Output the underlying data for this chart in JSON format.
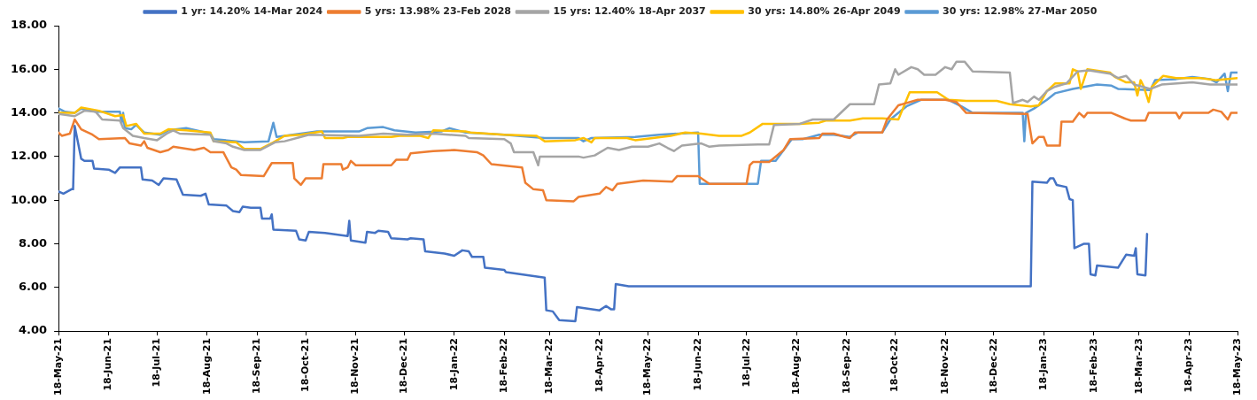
{
  "chart_data": {
    "type": "line",
    "legend": "top",
    "marker": "none",
    "line_style": "solid",
    "grid": false,
    "ylim": [
      4,
      18
    ],
    "yticks": [
      {
        "value": 4,
        "label": "4.00"
      },
      {
        "value": 6,
        "label": "6.00"
      },
      {
        "value": 8,
        "label": "8.00"
      },
      {
        "value": 10,
        "label": "10.00"
      },
      {
        "value": 12,
        "label": "12.00"
      },
      {
        "value": 14,
        "label": "14.00"
      },
      {
        "value": 16,
        "label": "16.00"
      },
      {
        "value": 18,
        "label": "18.00"
      }
    ],
    "xlim": [
      "2021-05-18",
      "2023-05-18"
    ],
    "xticks": [
      {
        "value": "2021-05-18",
        "label": "18-May-21"
      },
      {
        "value": "2021-06-18",
        "label": "18-Jun-21"
      },
      {
        "value": "2021-07-18",
        "label": "18-Jul-21"
      },
      {
        "value": "2021-08-18",
        "label": "18-Aug-21"
      },
      {
        "value": "2021-09-18",
        "label": "18-Sep-21"
      },
      {
        "value": "2021-10-18",
        "label": "18-Oct-21"
      },
      {
        "value": "2021-11-18",
        "label": "18-Nov-21"
      },
      {
        "value": "2021-12-18",
        "label": "18-Dec-21"
      },
      {
        "value": "2022-01-18",
        "label": "18-Jan-22"
      },
      {
        "value": "2022-02-18",
        "label": "18-Feb-22"
      },
      {
        "value": "2022-03-18",
        "label": "18-Mar-22"
      },
      {
        "value": "2022-04-18",
        "label": "18-Apr-22"
      },
      {
        "value": "2022-05-18",
        "label": "18-May-22"
      },
      {
        "value": "2022-06-18",
        "label": "18-Jun-22"
      },
      {
        "value": "2022-07-18",
        "label": "18-Jul-22"
      },
      {
        "value": "2022-08-18",
        "label": "18-Aug-22"
      },
      {
        "value": "2022-09-18",
        "label": "18-Sep-22"
      },
      {
        "value": "2022-10-18",
        "label": "18-Oct-22"
      },
      {
        "value": "2022-11-18",
        "label": "18-Nov-22"
      },
      {
        "value": "2022-12-18",
        "label": "18-Dec-22"
      },
      {
        "value": "2023-01-18",
        "label": "18-Jan-23"
      },
      {
        "value": "2023-02-18",
        "label": "18-Feb-23"
      },
      {
        "value": "2023-03-18",
        "label": "18-Mar-23"
      },
      {
        "value": "2023-04-18",
        "label": "18-Apr-23"
      },
      {
        "value": "2023-05-18",
        "label": "18-May-23"
      }
    ],
    "series": [
      {
        "name": "1 yr: 14.20% 14-Mar 2024",
        "color": "#4472c4",
        "x": [
          "2021-05-18",
          "2021-05-21",
          "2021-05-26",
          "2021-05-27",
          "2021-05-28",
          "2021-06-01",
          "2021-06-03",
          "2021-06-08",
          "2021-06-09",
          "2021-06-18",
          "2021-06-22",
          "2021-06-25",
          "2021-07-08",
          "2021-07-09",
          "2021-07-15",
          "2021-07-19",
          "2021-07-22",
          "2021-07-30",
          "2021-08-03",
          "2021-08-14",
          "2021-08-17",
          "2021-08-19",
          "2021-08-30",
          "2021-09-03",
          "2021-09-07",
          "2021-09-09",
          "2021-09-14",
          "2021-09-20",
          "2021-09-21",
          "2021-09-26",
          "2021-09-27",
          "2021-09-28",
          "2021-10-12",
          "2021-10-14",
          "2021-10-18",
          "2021-10-20",
          "2021-10-30",
          "2021-11-08",
          "2021-11-13",
          "2021-11-14",
          "2021-11-15",
          "2021-11-24",
          "2021-11-25",
          "2021-11-30",
          "2021-12-02",
          "2021-12-08",
          "2021-12-10",
          "2021-12-20",
          "2021-12-22",
          "2021-12-30",
          "2021-12-31",
          "2022-01-12",
          "2022-01-18",
          "2022-01-23",
          "2022-01-27",
          "2022-01-29",
          "2022-02-05",
          "2022-02-06",
          "2022-02-18",
          "2022-02-19",
          "2022-03-15",
          "2022-03-16",
          "2022-03-20",
          "2022-03-24",
          "2022-04-03",
          "2022-04-04",
          "2022-04-18",
          "2022-04-22",
          "2022-04-25",
          "2022-04-27",
          "2022-04-28",
          "2022-05-02",
          "2022-05-06",
          "2023-01-10",
          "2023-01-11",
          "2023-01-20",
          "2023-01-22",
          "2023-01-24",
          "2023-01-26",
          "2023-02-01",
          "2023-02-03",
          "2023-02-05",
          "2023-02-06",
          "2023-02-12",
          "2023-02-15",
          "2023-02-16",
          "2023-02-19",
          "2023-02-20",
          "2023-03-05",
          "2023-03-10",
          "2023-03-15",
          "2023-03-16",
          "2023-03-17",
          "2023-03-22",
          "2023-03-23"
        ],
        "values": [
          10.4,
          10.3,
          10.5,
          10.5,
          13.4,
          11.9,
          11.8,
          11.8,
          11.45,
          11.4,
          11.25,
          11.5,
          11.5,
          10.95,
          10.9,
          10.7,
          11.0,
          10.95,
          10.25,
          10.2,
          10.3,
          9.8,
          9.75,
          9.5,
          9.45,
          9.7,
          9.65,
          9.65,
          9.15,
          9.15,
          9.35,
          8.65,
          8.6,
          8.2,
          8.15,
          8.55,
          8.5,
          8.4,
          8.35,
          9.05,
          8.15,
          8.05,
          8.55,
          8.5,
          8.6,
          8.55,
          8.25,
          8.2,
          8.25,
          8.2,
          7.65,
          7.55,
          7.45,
          7.7,
          7.65,
          7.4,
          7.4,
          6.9,
          6.8,
          6.7,
          6.45,
          4.95,
          4.9,
          4.5,
          4.45,
          5.1,
          4.95,
          5.15,
          5.0,
          5.0,
          6.15,
          6.1,
          6.05,
          6.05,
          10.85,
          10.8,
          11.0,
          11.0,
          10.7,
          10.6,
          10.05,
          10.0,
          7.8,
          8.0,
          8.0,
          6.6,
          6.55,
          7.0,
          6.9,
          7.5,
          7.45,
          7.8,
          6.6,
          6.55,
          8.45
        ]
      },
      {
        "name": "5 yrs: 13.98% 23-Feb 2028",
        "color": "#ed7d31",
        "x": [
          "2021-05-18",
          "2021-05-20",
          "2021-05-25",
          "2021-05-28",
          "2021-06-01",
          "2021-06-08",
          "2021-06-12",
          "2021-06-28",
          "2021-07-01",
          "2021-07-08",
          "2021-07-10",
          "2021-07-12",
          "2021-07-20",
          "2021-07-25",
          "2021-07-28",
          "2021-08-10",
          "2021-08-16",
          "2021-08-20",
          "2021-08-28",
          "2021-09-02",
          "2021-09-05",
          "2021-09-08",
          "2021-09-22",
          "2021-09-27",
          "2021-10-10",
          "2021-10-11",
          "2021-10-15",
          "2021-10-18",
          "2021-10-28",
          "2021-10-29",
          "2021-11-09",
          "2021-11-10",
          "2021-11-13",
          "2021-11-15",
          "2021-11-18",
          "2021-12-10",
          "2021-12-13",
          "2021-12-20",
          "2021-12-22",
          "2022-01-05",
          "2022-01-18",
          "2022-02-01",
          "2022-02-05",
          "2022-02-10",
          "2022-03-01",
          "2022-03-03",
          "2022-03-08",
          "2022-03-14",
          "2022-03-16",
          "2022-04-02",
          "2022-04-05",
          "2022-04-18",
          "2022-04-22",
          "2022-04-26",
          "2022-04-29",
          "2022-05-15",
          "2022-06-02",
          "2022-06-05",
          "2022-06-18",
          "2022-06-25",
          "2022-07-18",
          "2022-07-20",
          "2022-07-22",
          "2022-08-01",
          "2022-08-10",
          "2022-08-14",
          "2022-09-01",
          "2022-09-03",
          "2022-09-10",
          "2022-09-17",
          "2022-09-20",
          "2022-09-23",
          "2022-10-10",
          "2022-10-13",
          "2022-10-20",
          "2022-11-01",
          "2022-11-18",
          "2022-11-25",
          "2022-12-01",
          "2023-01-08",
          "2023-01-11",
          "2023-01-15",
          "2023-01-18",
          "2023-01-20",
          "2023-01-28",
          "2023-01-29",
          "2023-02-05",
          "2023-02-09",
          "2023-02-12",
          "2023-02-14",
          "2023-03-01",
          "2023-03-09",
          "2023-03-13",
          "2023-03-22",
          "2023-03-24",
          "2023-04-10",
          "2023-04-12",
          "2023-04-14",
          "2023-04-30",
          "2023-05-03",
          "2023-05-08",
          "2023-05-12",
          "2023-05-14",
          "2023-05-18"
        ],
        "values": [
          13.1,
          12.95,
          13.05,
          13.7,
          13.25,
          13.0,
          12.8,
          12.85,
          12.6,
          12.5,
          12.7,
          12.4,
          12.2,
          12.3,
          12.45,
          12.3,
          12.4,
          12.2,
          12.2,
          11.5,
          11.4,
          11.15,
          11.1,
          11.7,
          11.7,
          11.0,
          10.7,
          11.0,
          11.0,
          11.65,
          11.65,
          11.4,
          11.5,
          11.8,
          11.6,
          11.6,
          11.85,
          11.85,
          12.15,
          12.25,
          12.3,
          12.2,
          12.05,
          11.65,
          11.5,
          10.8,
          10.5,
          10.45,
          10.0,
          9.95,
          10.15,
          10.3,
          10.6,
          10.45,
          10.75,
          10.9,
          10.85,
          11.1,
          11.1,
          10.75,
          10.75,
          11.6,
          11.75,
          11.75,
          12.3,
          12.8,
          12.85,
          13.05,
          13.05,
          12.9,
          12.85,
          13.1,
          13.1,
          13.7,
          14.35,
          14.6,
          14.6,
          14.5,
          14.0,
          13.95,
          12.6,
          12.9,
          12.9,
          12.5,
          12.5,
          13.6,
          13.6,
          14.0,
          13.8,
          14.0,
          14.0,
          13.75,
          13.65,
          13.65,
          14.0,
          14.0,
          13.75,
          14.0,
          14.0,
          14.15,
          14.05,
          13.7,
          14.0,
          14.0
        ]
      },
      {
        "name": "15 yrs: 12.40% 18-Apr 2037",
        "color": "#a5a5a5",
        "x": [
          "2021-05-18",
          "2021-05-28",
          "2021-06-03",
          "2021-06-10",
          "2021-06-14",
          "2021-06-25",
          "2021-06-27",
          "2021-07-03",
          "2021-07-10",
          "2021-07-18",
          "2021-07-24",
          "2021-07-28",
          "2021-08-01",
          "2021-08-20",
          "2021-08-22",
          "2021-08-30",
          "2021-09-03",
          "2021-09-10",
          "2021-09-20",
          "2021-09-25",
          "2021-09-29",
          "2021-10-05",
          "2021-10-15",
          "2021-10-20",
          "2021-11-20",
          "2021-12-05",
          "2021-12-20",
          "2022-01-05",
          "2022-01-25",
          "2022-01-27",
          "2022-02-18",
          "2022-02-22",
          "2022-02-24",
          "2022-03-08",
          "2022-03-11",
          "2022-03-12",
          "2022-04-05",
          "2022-04-08",
          "2022-04-15",
          "2022-04-23",
          "2022-04-30",
          "2022-05-08",
          "2022-05-18",
          "2022-05-25",
          "2022-05-30",
          "2022-06-03",
          "2022-06-08",
          "2022-06-20",
          "2022-06-25",
          "2022-07-01",
          "2022-07-25",
          "2022-08-01",
          "2022-08-04",
          "2022-08-20",
          "2022-08-28",
          "2022-09-10",
          "2022-09-20",
          "2022-10-05",
          "2022-10-08",
          "2022-10-15",
          "2022-10-18",
          "2022-10-20",
          "2022-10-28",
          "2022-11-01",
          "2022-11-05",
          "2022-11-12",
          "2022-11-18",
          "2022-11-22",
          "2022-11-25",
          "2022-11-30",
          "2022-12-05",
          "2022-12-28",
          "2022-12-30",
          "2023-01-05",
          "2023-01-08",
          "2023-01-12",
          "2023-01-15",
          "2023-01-20",
          "2023-01-25",
          "2023-02-01",
          "2023-02-08",
          "2023-02-15",
          "2023-02-28",
          "2023-03-05",
          "2023-03-10",
          "2023-03-15",
          "2023-03-25",
          "2023-04-01",
          "2023-04-20",
          "2023-05-01",
          "2023-05-18"
        ],
        "values": [
          13.95,
          13.85,
          14.1,
          14.05,
          13.7,
          13.65,
          13.3,
          12.95,
          12.85,
          12.75,
          13.05,
          13.2,
          13.05,
          13.0,
          12.7,
          12.6,
          12.45,
          12.3,
          12.3,
          12.5,
          12.65,
          12.7,
          12.9,
          13.0,
          12.95,
          13.05,
          13.0,
          13.05,
          12.95,
          12.85,
          12.8,
          12.6,
          12.2,
          12.2,
          11.6,
          12.0,
          12.0,
          11.95,
          12.05,
          12.4,
          12.3,
          12.45,
          12.45,
          12.6,
          12.4,
          12.25,
          12.5,
          12.6,
          12.45,
          12.5,
          12.55,
          12.55,
          13.45,
          13.5,
          13.7,
          13.7,
          14.4,
          14.4,
          15.3,
          15.35,
          16.0,
          15.75,
          16.1,
          16.0,
          15.75,
          15.75,
          16.1,
          16.0,
          16.35,
          16.35,
          15.9,
          15.85,
          14.45,
          14.6,
          14.5,
          14.75,
          14.6,
          15.0,
          15.2,
          15.35,
          15.9,
          15.95,
          15.8,
          15.6,
          15.7,
          15.3,
          15.1,
          15.3,
          15.4,
          15.3,
          15.3
        ]
      },
      {
        "name": "30 yrs: 14.80% 26-Apr 2049",
        "color": "#ffc000",
        "x": [
          "2021-05-18",
          "2021-05-28",
          "2021-06-01",
          "2021-06-12",
          "2021-06-22",
          "2021-06-27",
          "2021-06-29",
          "2021-07-05",
          "2021-07-10",
          "2021-07-20",
          "2021-07-25",
          "2021-08-05",
          "2021-08-20",
          "2021-08-22",
          "2021-09-05",
          "2021-09-10",
          "2021-09-20",
          "2021-09-28",
          "2021-10-05",
          "2021-10-15",
          "2021-10-28",
          "2021-10-30",
          "2021-11-10",
          "2021-11-13",
          "2021-12-10",
          "2021-12-15",
          "2021-12-28",
          "2022-01-02",
          "2022-01-05",
          "2022-01-25",
          "2022-01-28",
          "2022-02-18",
          "2022-03-10",
          "2022-03-15",
          "2022-04-03",
          "2022-04-08",
          "2022-04-13",
          "2022-04-15",
          "2022-05-05",
          "2022-05-10",
          "2022-06-01",
          "2022-06-10",
          "2022-06-20",
          "2022-07-01",
          "2022-07-15",
          "2022-07-20",
          "2022-07-28",
          "2022-08-20",
          "2022-09-01",
          "2022-09-05",
          "2022-09-20",
          "2022-09-28",
          "2022-10-10",
          "2022-10-20",
          "2022-10-27",
          "2022-11-13",
          "2022-11-20",
          "2022-12-01",
          "2022-12-20",
          "2022-12-28",
          "2023-01-10",
          "2023-01-15",
          "2023-01-20",
          "2023-01-25",
          "2023-02-03",
          "2023-02-05",
          "2023-02-08",
          "2023-02-10",
          "2023-02-14",
          "2023-02-28",
          "2023-03-03",
          "2023-03-10",
          "2023-03-15",
          "2023-03-17",
          "2023-03-19",
          "2023-03-21",
          "2023-03-24",
          "2023-03-26",
          "2023-04-02",
          "2023-04-10",
          "2023-04-25",
          "2023-05-05",
          "2023-05-18"
        ],
        "values": [
          14.0,
          14.0,
          14.25,
          14.1,
          13.85,
          13.9,
          13.4,
          13.5,
          13.05,
          13.05,
          13.25,
          13.2,
          13.1,
          12.7,
          12.65,
          12.35,
          12.35,
          12.65,
          12.95,
          13.0,
          13.15,
          12.85,
          12.85,
          12.9,
          12.9,
          12.95,
          12.95,
          12.85,
          13.2,
          13.15,
          13.1,
          13.0,
          12.95,
          12.7,
          12.75,
          12.85,
          12.65,
          12.85,
          12.85,
          12.75,
          12.95,
          13.1,
          13.05,
          12.95,
          12.95,
          13.1,
          13.5,
          13.5,
          13.55,
          13.65,
          13.65,
          13.75,
          13.75,
          13.7,
          14.95,
          14.95,
          14.6,
          14.55,
          14.55,
          14.4,
          14.3,
          14.35,
          15.0,
          15.35,
          15.35,
          16.0,
          15.9,
          15.1,
          16.0,
          15.85,
          15.65,
          15.4,
          15.4,
          14.8,
          15.5,
          15.2,
          14.5,
          15.2,
          15.7,
          15.6,
          15.6,
          15.5,
          15.6
        ]
      },
      {
        "name": "30 yrs: 12.98% 27-Mar 2050",
        "color": "#5b9bd5",
        "x": [
          "2021-05-18",
          "2021-05-22",
          "2021-05-28",
          "2021-06-01",
          "2021-06-10",
          "2021-06-25",
          "2021-06-26",
          "2021-06-27",
          "2021-06-28",
          "2021-07-02",
          "2021-07-05",
          "2021-07-10",
          "2021-07-20",
          "2021-07-25",
          "2021-08-05",
          "2021-08-20",
          "2021-08-22",
          "2021-09-05",
          "2021-09-10",
          "2021-09-25",
          "2021-09-28",
          "2021-09-30",
          "2021-10-05",
          "2021-10-15",
          "2021-10-25",
          "2021-11-20",
          "2021-11-25",
          "2021-12-05",
          "2021-12-12",
          "2021-12-25",
          "2022-01-10",
          "2022-01-15",
          "2022-01-25",
          "2022-02-18",
          "2022-03-15",
          "2022-04-05",
          "2022-04-08",
          "2022-04-13",
          "2022-05-10",
          "2022-05-25",
          "2022-06-18",
          "2022-06-19",
          "2022-07-25",
          "2022-07-27",
          "2022-08-05",
          "2022-08-10",
          "2022-08-15",
          "2022-08-22",
          "2022-09-01",
          "2022-09-10",
          "2022-09-20",
          "2022-09-25",
          "2022-10-10",
          "2022-10-15",
          "2022-10-25",
          "2022-11-03",
          "2022-11-20",
          "2022-11-28",
          "2022-12-05",
          "2023-01-05",
          "2023-01-06",
          "2023-01-07",
          "2023-01-12",
          "2023-01-20",
          "2023-01-25",
          "2023-02-05",
          "2023-02-20",
          "2023-03-01",
          "2023-03-05",
          "2023-03-25",
          "2023-03-28",
          "2023-04-10",
          "2023-04-20",
          "2023-05-01",
          "2023-05-05",
          "2023-05-10",
          "2023-05-12",
          "2023-05-14",
          "2023-05-18"
        ],
        "values": [
          14.2,
          14.05,
          14.0,
          14.2,
          14.05,
          14.05,
          13.5,
          14.0,
          13.3,
          13.25,
          13.45,
          13.1,
          13.0,
          13.2,
          13.3,
          13.05,
          12.8,
          12.7,
          12.65,
          12.7,
          13.55,
          12.9,
          12.95,
          13.05,
          13.15,
          13.15,
          13.3,
          13.35,
          13.2,
          13.1,
          13.15,
          13.3,
          13.1,
          13.0,
          12.85,
          12.85,
          12.7,
          12.85,
          12.9,
          13.0,
          13.1,
          10.75,
          10.75,
          11.8,
          11.8,
          12.3,
          12.8,
          12.8,
          13.0,
          13.0,
          12.9,
          13.1,
          13.1,
          13.7,
          14.3,
          14.6,
          14.6,
          14.3,
          14.0,
          14.0,
          12.7,
          14.0,
          14.2,
          14.6,
          14.9,
          15.1,
          15.3,
          15.25,
          15.1,
          15.05,
          15.5,
          15.55,
          15.65,
          15.55,
          15.4,
          15.8,
          15.0,
          15.85,
          15.85
        ]
      }
    ]
  }
}
